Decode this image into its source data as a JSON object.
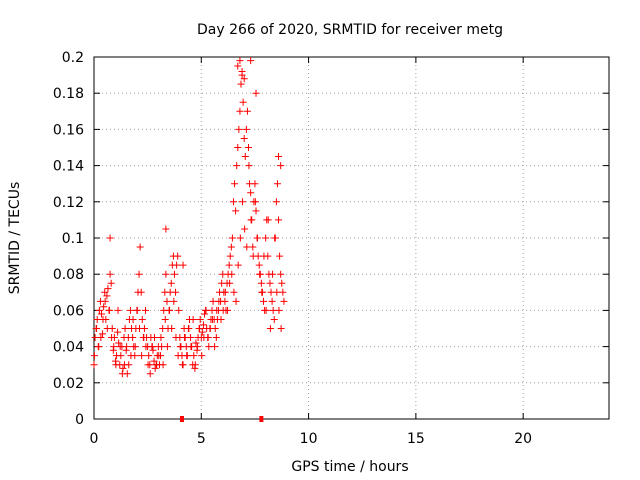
{
  "chart_data": {
    "type": "scatter",
    "title": "Day 266 of 2020, SRMTID for receiver metg",
    "xlabel": "GPS time / hours",
    "ylabel": "SRMTID / TECUs",
    "xlim": [
      0,
      24
    ],
    "ylim": [
      0,
      0.2
    ],
    "grid": true,
    "marker": "+",
    "color": "#ff0000",
    "x_ticks": [
      0,
      5,
      10,
      15,
      20
    ],
    "x_tick_labels": [
      "0",
      "5",
      "10",
      "15",
      "20"
    ],
    "y_ticks": [
      0,
      0.02,
      0.04,
      0.06,
      0.08,
      0.1,
      0.12,
      0.14,
      0.16,
      0.18,
      0.2
    ],
    "y_tick_labels": [
      "0",
      "0.02",
      "0.04",
      "0.06",
      "0.08",
      "0.1",
      "0.12",
      "0.14",
      "0.16",
      "0.18",
      "0.2"
    ],
    "series": [
      {
        "name": "SRMTID",
        "x": [
          0.0,
          0.05,
          0.1,
          0.15,
          0.2,
          0.25,
          0.3,
          0.35,
          0.4,
          0.45,
          0.5,
          0.55,
          0.6,
          0.65,
          0.7,
          0.75,
          0.8,
          0.85,
          0.9,
          0.95,
          1.0,
          1.05,
          1.1,
          1.15,
          1.2,
          1.25,
          1.3,
          1.35,
          1.4,
          1.45,
          1.5,
          1.55,
          1.6,
          1.65,
          1.7,
          1.75,
          1.8,
          1.85,
          1.9,
          1.95,
          2.0,
          2.05,
          2.1,
          2.15,
          2.2,
          2.25,
          2.3,
          2.35,
          2.4,
          2.45,
          2.5,
          2.55,
          2.6,
          2.65,
          2.7,
          2.75,
          2.8,
          2.85,
          2.9,
          2.95,
          3.0,
          3.05,
          3.1,
          3.15,
          3.2,
          3.25,
          3.3,
          3.35,
          3.4,
          3.45,
          3.5,
          3.55,
          3.6,
          3.65,
          3.7,
          3.75,
          3.8,
          3.85,
          3.9,
          3.95,
          4.0,
          4.05,
          4.1,
          4.15,
          4.2,
          4.25,
          4.3,
          4.35,
          4.4,
          4.45,
          4.5,
          4.55,
          4.6,
          4.65,
          4.7,
          4.75,
          4.8,
          4.85,
          4.9,
          4.95,
          5.0,
          5.05,
          5.1,
          5.15,
          5.2,
          5.25,
          5.3,
          5.35,
          5.4,
          5.45,
          5.5,
          5.55,
          5.6,
          5.65,
          5.7,
          5.75,
          5.8,
          5.85,
          5.9,
          5.95,
          6.0,
          6.05,
          6.1,
          6.15,
          6.2,
          6.25,
          6.3,
          6.35,
          6.4,
          6.45,
          6.5,
          6.55,
          6.6,
          6.65,
          6.7,
          6.75,
          6.8,
          6.85,
          6.9,
          6.95,
          7.0,
          7.05,
          7.1,
          7.15,
          7.2,
          7.25,
          7.3,
          7.35,
          7.4,
          7.45,
          7.5,
          7.55,
          7.6,
          7.65,
          7.7,
          7.75,
          7.8,
          7.85,
          7.9,
          7.95,
          8.0,
          8.05,
          8.1,
          8.15,
          8.2,
          8.25,
          8.3,
          8.35,
          8.4,
          8.45,
          8.5,
          8.55,
          8.6,
          8.65,
          8.7,
          8.75,
          8.8,
          8.85,
          0.02,
          0.12,
          0.22,
          0.32,
          0.42,
          0.52,
          0.62,
          0.72,
          0.82,
          0.92,
          1.02,
          1.12,
          1.22,
          1.32,
          1.42,
          1.52,
          1.62,
          1.72,
          1.82,
          1.92,
          2.02,
          2.12,
          2.22,
          2.32,
          2.42,
          2.52,
          2.62,
          2.72,
          2.82,
          2.92,
          3.02,
          3.12,
          3.22,
          3.32,
          3.42,
          3.52,
          3.62,
          3.72,
          3.82,
          3.92,
          4.02,
          4.12,
          4.22,
          4.32,
          4.42,
          4.52,
          4.62,
          4.72,
          4.82,
          4.92,
          5.02,
          5.12,
          5.22,
          5.32,
          5.42,
          5.52,
          5.62,
          5.72,
          5.82,
          5.92,
          6.02,
          6.12,
          6.22,
          6.32,
          6.42,
          6.52,
          6.62,
          6.72,
          6.82,
          6.92,
          7.02,
          7.12,
          7.22,
          7.32,
          7.42,
          7.52,
          7.62,
          7.72,
          7.82,
          7.92,
          8.02,
          8.12,
          8.22,
          8.32,
          8.42,
          8.52,
          8.62,
          8.72,
          0.75,
          6.7,
          6.8,
          6.9,
          7.0,
          7.3,
          7.55,
          3.35,
          4.15,
          8.6,
          8.7
        ],
        "y": [
          0.03,
          0.045,
          0.05,
          0.055,
          0.04,
          0.06,
          0.065,
          0.058,
          0.047,
          0.062,
          0.07,
          0.055,
          0.068,
          0.072,
          0.06,
          0.08,
          0.075,
          0.05,
          0.038,
          0.045,
          0.032,
          0.035,
          0.048,
          0.042,
          0.03,
          0.035,
          0.04,
          0.028,
          0.045,
          0.05,
          0.038,
          0.025,
          0.045,
          0.055,
          0.06,
          0.05,
          0.045,
          0.04,
          0.035,
          0.05,
          0.06,
          0.07,
          0.08,
          0.095,
          0.07,
          0.055,
          0.045,
          0.05,
          0.06,
          0.045,
          0.04,
          0.035,
          0.03,
          0.045,
          0.04,
          0.038,
          0.032,
          0.028,
          0.03,
          0.035,
          0.04,
          0.03,
          0.035,
          0.04,
          0.05,
          0.06,
          0.07,
          0.08,
          0.065,
          0.05,
          0.06,
          0.07,
          0.075,
          0.085,
          0.09,
          0.08,
          0.07,
          0.085,
          0.09,
          0.06,
          0.045,
          0.04,
          0.035,
          0.03,
          0.05,
          0.045,
          0.04,
          0.035,
          0.05,
          0.055,
          0.045,
          0.04,
          0.03,
          0.035,
          0.028,
          0.042,
          0.038,
          0.045,
          0.05,
          0.055,
          0.045,
          0.048,
          0.052,
          0.058,
          0.06,
          0.05,
          0.045,
          0.04,
          0.05,
          0.055,
          0.06,
          0.065,
          0.055,
          0.05,
          0.045,
          0.055,
          0.06,
          0.07,
          0.065,
          0.075,
          0.08,
          0.07,
          0.065,
          0.06,
          0.075,
          0.08,
          0.085,
          0.09,
          0.095,
          0.1,
          0.12,
          0.13,
          0.115,
          0.14,
          0.15,
          0.16,
          0.17,
          0.185,
          0.19,
          0.175,
          0.155,
          0.145,
          0.16,
          0.17,
          0.15,
          0.13,
          0.125,
          0.11,
          0.095,
          0.12,
          0.13,
          0.115,
          0.1,
          0.09,
          0.085,
          0.08,
          0.075,
          0.07,
          0.065,
          0.06,
          0.1,
          0.11,
          0.09,
          0.08,
          0.075,
          0.07,
          0.065,
          0.06,
          0.055,
          0.1,
          0.12,
          0.13,
          0.11,
          0.09,
          0.08,
          0.075,
          0.07,
          0.065,
          0.035,
          0.05,
          0.04,
          0.045,
          0.055,
          0.065,
          0.05,
          0.06,
          0.045,
          0.04,
          0.03,
          0.06,
          0.04,
          0.025,
          0.03,
          0.04,
          0.03,
          0.035,
          0.055,
          0.04,
          0.06,
          0.05,
          0.035,
          0.045,
          0.04,
          0.03,
          0.025,
          0.04,
          0.045,
          0.03,
          0.035,
          0.045,
          0.03,
          0.055,
          0.04,
          0.06,
          0.05,
          0.065,
          0.045,
          0.035,
          0.04,
          0.03,
          0.045,
          0.035,
          0.05,
          0.04,
          0.055,
          0.03,
          0.04,
          0.05,
          0.035,
          0.045,
          0.06,
          0.045,
          0.05,
          0.055,
          0.04,
          0.06,
          0.065,
          0.055,
          0.06,
          0.07,
          0.06,
          0.075,
          0.08,
          0.07,
          0.065,
          0.085,
          0.1,
          0.12,
          0.105,
          0.095,
          0.14,
          0.11,
          0.09,
          0.12,
          0.1,
          0.08,
          0.07,
          0.09,
          0.06,
          0.11,
          0.05,
          0.08,
          0.1,
          0.07,
          0.06,
          0.05,
          0.1,
          0.195,
          0.198,
          0.192,
          0.188,
          0.198,
          0.18,
          0.105,
          0.085,
          0.145,
          0.14
        ]
      }
    ],
    "axis_markers": [
      4.1,
      7.8
    ]
  }
}
